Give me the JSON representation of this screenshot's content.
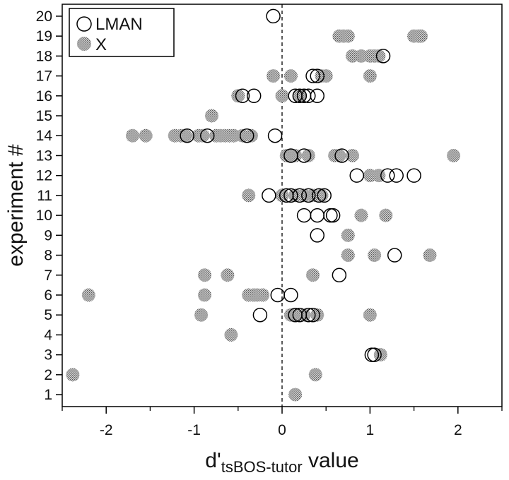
{
  "chart_data": {
    "type": "scatter",
    "title": "",
    "xlabel_main": "d'",
    "xlabel_sub": "tsBOS-tutor",
    "xlabel_tail": " value",
    "ylabel": "experiment #",
    "xlim": [
      -2.5,
      2.5
    ],
    "ylim": [
      0.4,
      20.6
    ],
    "x_ticks": [
      -2,
      -1,
      0,
      1,
      2
    ],
    "x_tick_labels": [
      "-2",
      "-1",
      "0",
      "1",
      "2"
    ],
    "x_minor_ticks": [
      -2.5,
      -1.5,
      -0.5,
      0.5,
      1.5,
      2.5
    ],
    "y_ticks": [
      1,
      2,
      3,
      4,
      5,
      6,
      7,
      8,
      9,
      10,
      11,
      12,
      13,
      14,
      15,
      16,
      17,
      18,
      19,
      20
    ],
    "y_tick_labels": [
      "1",
      "2",
      "3",
      "4",
      "5",
      "6",
      "7",
      "8",
      "9",
      "10",
      "11",
      "12",
      "13",
      "14",
      "15",
      "16",
      "17",
      "18",
      "19",
      "20"
    ],
    "reference_line_x": 0,
    "legend": {
      "position": "top-left",
      "entries": [
        "LMAN",
        "X"
      ]
    },
    "series": [
      {
        "name": "LMAN",
        "marker": "open-circle",
        "points": [
          [
            -0.1,
            20
          ],
          [
            1.15,
            18
          ],
          [
            0.35,
            17
          ],
          [
            0.4,
            17
          ],
          [
            -0.45,
            16
          ],
          [
            -0.32,
            16
          ],
          [
            0.15,
            16
          ],
          [
            0.2,
            16
          ],
          [
            0.25,
            16
          ],
          [
            0.3,
            16
          ],
          [
            0.4,
            16
          ],
          [
            -1.08,
            14
          ],
          [
            -0.85,
            14
          ],
          [
            -0.4,
            14
          ],
          [
            -0.08,
            14
          ],
          [
            0.1,
            13
          ],
          [
            0.25,
            13
          ],
          [
            0.68,
            13
          ],
          [
            0.85,
            12
          ],
          [
            1.2,
            12
          ],
          [
            1.3,
            12
          ],
          [
            1.5,
            12
          ],
          [
            -0.15,
            11
          ],
          [
            0.05,
            11
          ],
          [
            0.1,
            11
          ],
          [
            0.2,
            11
          ],
          [
            0.3,
            11
          ],
          [
            0.42,
            11
          ],
          [
            0.48,
            11
          ],
          [
            0.25,
            10
          ],
          [
            0.4,
            10
          ],
          [
            0.55,
            10
          ],
          [
            0.58,
            10
          ],
          [
            0.4,
            9
          ],
          [
            1.28,
            8
          ],
          [
            0.65,
            7
          ],
          [
            -0.05,
            6
          ],
          [
            0.1,
            6
          ],
          [
            -0.25,
            5
          ],
          [
            0.15,
            5
          ],
          [
            0.2,
            5
          ],
          [
            0.3,
            5
          ],
          [
            0.35,
            5
          ],
          [
            1.02,
            3
          ],
          [
            1.05,
            3
          ]
        ]
      },
      {
        "name": "X",
        "marker": "stippled-disk",
        "points": [
          [
            0.65,
            19
          ],
          [
            0.7,
            19
          ],
          [
            0.75,
            19
          ],
          [
            1.5,
            19
          ],
          [
            1.55,
            19
          ],
          [
            1.58,
            19
          ],
          [
            0.8,
            18
          ],
          [
            0.9,
            18
          ],
          [
            1.0,
            18
          ],
          [
            1.05,
            18
          ],
          [
            1.1,
            18
          ],
          [
            -0.1,
            17
          ],
          [
            0.1,
            17
          ],
          [
            0.45,
            17
          ],
          [
            0.5,
            17
          ],
          [
            1.0,
            17
          ],
          [
            -0.5,
            16
          ],
          [
            0.0,
            16
          ],
          [
            0.2,
            16
          ],
          [
            -0.8,
            15
          ],
          [
            -1.7,
            14
          ],
          [
            -1.55,
            14
          ],
          [
            -1.22,
            14
          ],
          [
            -1.15,
            14
          ],
          [
            -1.1,
            14
          ],
          [
            -0.95,
            14
          ],
          [
            -0.9,
            14
          ],
          [
            -0.75,
            14
          ],
          [
            -0.7,
            14
          ],
          [
            -0.65,
            14
          ],
          [
            -0.6,
            14
          ],
          [
            -0.55,
            14
          ],
          [
            -0.45,
            14
          ],
          [
            -0.35,
            14
          ],
          [
            0.05,
            13
          ],
          [
            0.1,
            13
          ],
          [
            0.15,
            13
          ],
          [
            0.3,
            13
          ],
          [
            0.6,
            13
          ],
          [
            0.65,
            13
          ],
          [
            0.8,
            13
          ],
          [
            1.95,
            13
          ],
          [
            1.0,
            12
          ],
          [
            1.1,
            12
          ],
          [
            -0.38,
            11
          ],
          [
            0.0,
            11
          ],
          [
            0.15,
            11
          ],
          [
            0.25,
            11
          ],
          [
            0.35,
            11
          ],
          [
            0.45,
            11
          ],
          [
            0.9,
            10
          ],
          [
            1.18,
            10
          ],
          [
            0.75,
            9
          ],
          [
            0.75,
            8
          ],
          [
            1.05,
            8
          ],
          [
            1.68,
            8
          ],
          [
            -0.88,
            7
          ],
          [
            -0.62,
            7
          ],
          [
            0.35,
            7
          ],
          [
            -2.2,
            6
          ],
          [
            -0.88,
            6
          ],
          [
            -0.38,
            6
          ],
          [
            -0.32,
            6
          ],
          [
            -0.28,
            6
          ],
          [
            -0.22,
            6
          ],
          [
            -0.92,
            5
          ],
          [
            0.1,
            5
          ],
          [
            0.15,
            5
          ],
          [
            0.25,
            5
          ],
          [
            0.4,
            5
          ],
          [
            1.0,
            5
          ],
          [
            -0.58,
            4
          ],
          [
            1.12,
            3
          ],
          [
            -2.38,
            2
          ],
          [
            0.38,
            2
          ],
          [
            0.15,
            1
          ]
        ]
      }
    ]
  }
}
